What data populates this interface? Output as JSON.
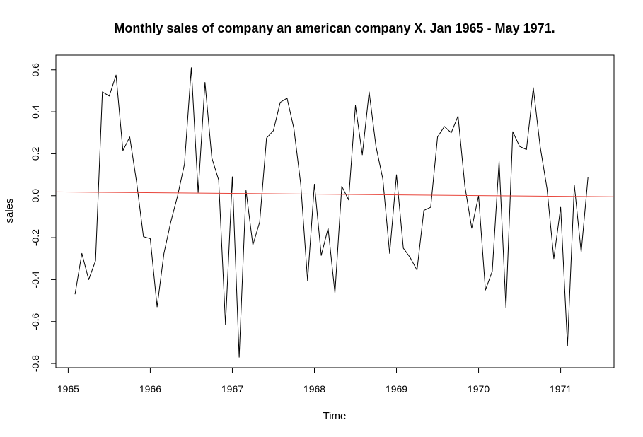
{
  "chart_data": {
    "type": "line",
    "title": "Monthly sales of company an american company X. Jan 1965 - May 1971.",
    "xlabel": "Time",
    "ylabel": "sales",
    "xlim": [
      1964.85,
      1971.65
    ],
    "ylim": [
      -0.82,
      0.67
    ],
    "x_ticks": [
      1965,
      1966,
      1967,
      1968,
      1969,
      1970,
      1971
    ],
    "x_tick_labels": [
      "1965",
      "1966",
      "1967",
      "1968",
      "1969",
      "1970",
      "1971"
    ],
    "y_ticks": [
      -0.8,
      -0.6,
      -0.4,
      -0.2,
      0.0,
      0.2,
      0.4,
      0.6
    ],
    "y_tick_labels": [
      "-0.8",
      "-0.6",
      "-0.4",
      "-0.2",
      "0.0",
      "0.2",
      "0.4",
      "0.6"
    ],
    "grid": false,
    "legend": "none",
    "start": "1965-02",
    "frequency": "monthly",
    "series": [
      {
        "color": "#000000",
        "values": [
          -0.47,
          -0.275,
          -0.4,
          -0.31,
          0.495,
          0.475,
          0.575,
          0.215,
          0.28,
          0.065,
          -0.195,
          -0.205,
          -0.53,
          -0.275,
          -0.125,
          0.0,
          0.15,
          0.61,
          0.015,
          0.54,
          0.18,
          0.075,
          -0.615,
          0.09,
          -0.77,
          0.025,
          -0.235,
          -0.125,
          0.275,
          0.31,
          0.445,
          0.465,
          0.32,
          0.055,
          -0.405,
          0.055,
          -0.285,
          -0.155,
          -0.465,
          0.045,
          -0.02,
          0.43,
          0.195,
          0.495,
          0.235,
          0.08,
          -0.275,
          0.1,
          -0.25,
          -0.295,
          -0.355,
          -0.07,
          -0.055,
          0.28,
          0.33,
          0.3,
          0.38,
          0.045,
          -0.155,
          0.0,
          -0.45,
          -0.36,
          0.165,
          -0.535,
          0.305,
          0.235,
          0.22,
          0.515,
          0.235,
          0.035,
          -0.3,
          -0.055,
          -0.715,
          0.05,
          -0.27,
          0.09
        ]
      },
      {
        "type": "trend",
        "color": "#e8443a",
        "x": [
          1964.85,
          1971.65
        ],
        "values": [
          0.018,
          -0.005
        ]
      }
    ]
  }
}
